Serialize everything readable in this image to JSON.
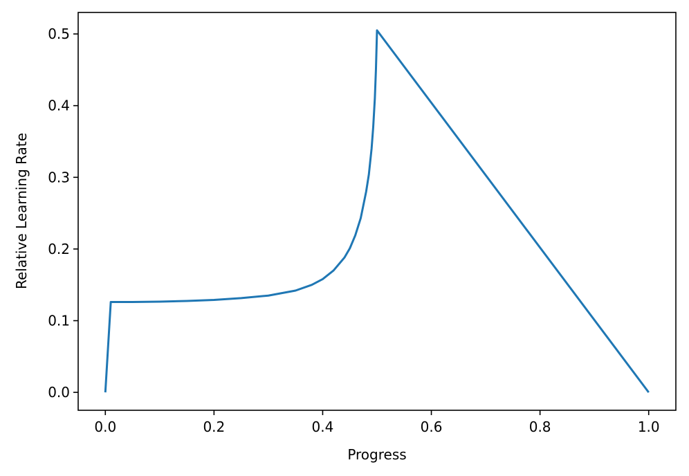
{
  "chart_data": {
    "type": "line",
    "title": "",
    "xlabel": "Progress",
    "ylabel": "Relative Learning Rate",
    "xlim": [
      -0.05,
      1.05
    ],
    "ylim": [
      -0.025,
      0.53
    ],
    "xticks": [
      0.0,
      0.2,
      0.4,
      0.6,
      0.8,
      1.0
    ],
    "xtick_labels": [
      "0.0",
      "0.2",
      "0.4",
      "0.6",
      "0.8",
      "1.0"
    ],
    "yticks": [
      0.0,
      0.1,
      0.2,
      0.3,
      0.4,
      0.5
    ],
    "ytick_labels": [
      "0.0",
      "0.1",
      "0.2",
      "0.3",
      "0.4",
      "0.5"
    ],
    "grid": false,
    "legend": "none",
    "colors": {
      "line": "#1f77b4",
      "axes": "#000000"
    },
    "series": [
      {
        "x": [
          0.0,
          0.01,
          0.05,
          0.1,
          0.15,
          0.2,
          0.25,
          0.3,
          0.35,
          0.38,
          0.4,
          0.42,
          0.44,
          0.45,
          0.46,
          0.47,
          0.48,
          0.485,
          0.49,
          0.493,
          0.496,
          0.498,
          0.5,
          1.0
        ],
        "y": [
          0.0,
          0.126,
          0.126,
          0.1265,
          0.1275,
          0.129,
          0.1315,
          0.135,
          0.142,
          0.15,
          0.158,
          0.17,
          0.188,
          0.201,
          0.219,
          0.243,
          0.28,
          0.304,
          0.34,
          0.37,
          0.41,
          0.45,
          0.505,
          0.0
        ]
      }
    ]
  }
}
